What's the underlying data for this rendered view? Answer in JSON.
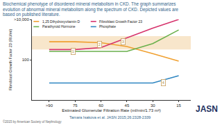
{
  "chart_data": {
    "type": "line",
    "title": "Biochemical phenotype of disordered mineral metabolism in CKD. The graph summarizes evolution of abnormal mineral metabolism along the spectrum of CKD. Depicted values are based on published literature.",
    "x_label": "Estimated Glomerular Filtration Rate (ml/min/1.73 m²)",
    "y_label": "Fibroblast Growth Factor 23 (RU/ml)",
    "x": [
      90,
      75,
      60,
      45,
      30,
      15
    ],
    "series": [
      {
        "name": "1,25 Dihydroxyvitamin D",
        "color": "#f0a030",
        "values": [
          780,
          780,
          700,
          450,
          200,
          85
        ]
      },
      {
        "name": "Fibroblast Growth Factor 23",
        "color": "#d6336c",
        "values": [
          320,
          320,
          400,
          1200,
          3700,
          10000
        ]
      },
      {
        "name": "Parathyroid Hormone",
        "color": "#6ab04c",
        "values": [
          260,
          260,
          260,
          260,
          630,
          3000
        ]
      },
      {
        "name": "Phosphate",
        "color": "#2e86c1",
        "values": [
          7,
          7,
          7,
          7,
          7,
          16
        ]
      }
    ],
    "normal_range": [
      320,
      1500
    ],
    "xlim": [
      100,
      8
    ],
    "xticks": [
      {
        "value": 90,
        "label": ">90"
      },
      75,
      60,
      45,
      30,
      15
    ],
    "ylim": [
      1,
      10000
    ],
    "yticks": [
      100,
      {
        "value": 10000,
        "label": ">10,000"
      }
    ],
    "log": "y",
    "grid": false,
    "legend": "top left",
    "annotations": [
      {
        "text": "1",
        "x": 76,
        "y": 250
      },
      {
        "text": "2",
        "x": 61,
        "y": 560
      },
      {
        "text": "3",
        "x": 47,
        "y": 780
      },
      {
        "text": "4",
        "x": 24,
        "y": 7
      }
    ],
    "source": "Tamara Isakova et al. JASN 2015;26:2328-2339",
    "copyright": "©2015 by American Society of Nephrology",
    "logo": "JASN"
  }
}
